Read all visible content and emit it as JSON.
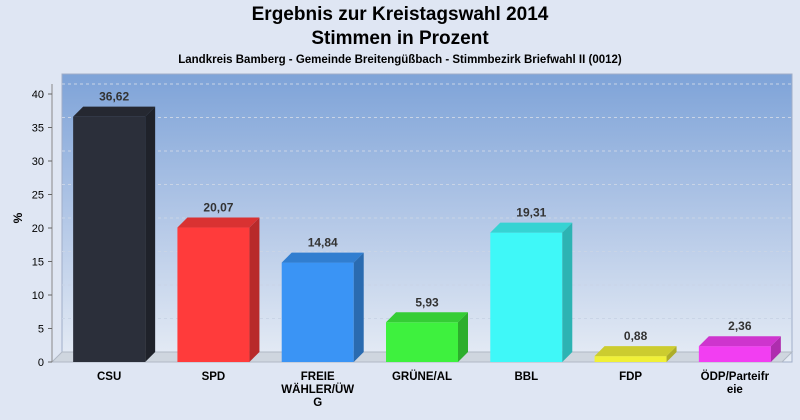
{
  "header": {
    "title": "Ergebnis zur Kreistagswahl 2014",
    "subtitle": "Stimmen in Prozent",
    "caption": "Landkreis Bamberg - Gemeinde Breitengüßbach - Stimmbezirk Briefwahl II (0012)"
  },
  "chart_data": {
    "type": "bar",
    "title": "Ergebnis zur Kreistagswahl 2014",
    "subtitle": "Stimmen in Prozent",
    "caption": "Landkreis Bamberg - Gemeinde Breitengüßbach - Stimmbezirk Briefwahl II (0012)",
    "ylabel": "%",
    "xlabel": "",
    "ylim": [
      0,
      40
    ],
    "yticks": [
      0,
      5,
      10,
      15,
      20,
      25,
      30,
      35,
      40
    ],
    "grid": true,
    "categories": [
      [
        "CSU"
      ],
      [
        "SPD"
      ],
      [
        "FREIE",
        "WÄHLER/ÜW",
        "G"
      ],
      [
        "GRÜNE/AL"
      ],
      [
        "BBL"
      ],
      [
        "FDP"
      ],
      [
        "ÖDP/Parteifr",
        "eie"
      ]
    ],
    "values": [
      36.62,
      20.07,
      14.84,
      5.93,
      19.31,
      0.88,
      2.36
    ],
    "value_labels": [
      "36,62",
      "20,07",
      "14,84",
      "5,93",
      "19,31",
      "0,88",
      "2,36"
    ],
    "colors": [
      "#2b2f3a",
      "#ff3b3b",
      "#3a94f5",
      "#3ef13e",
      "#3ff8f8",
      "#f0f037",
      "#f23ef2"
    ]
  }
}
